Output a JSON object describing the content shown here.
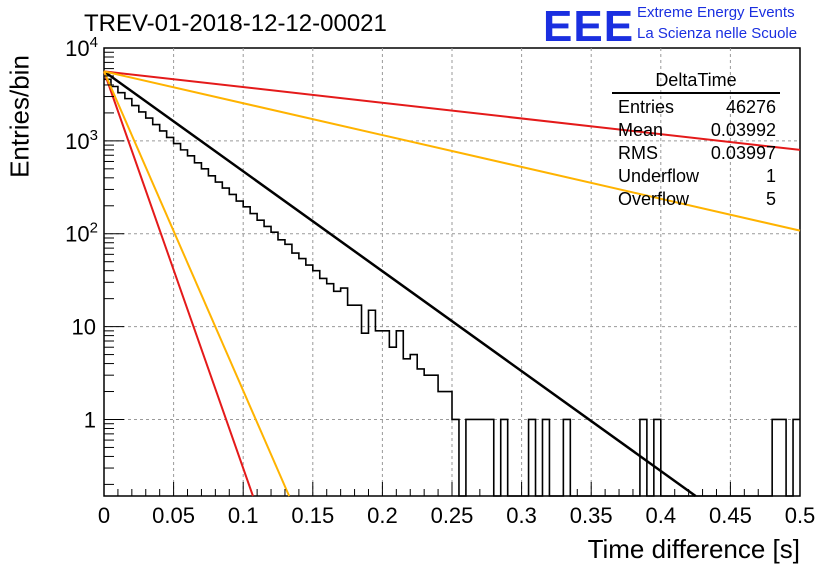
{
  "title": "TREV-01-2018-12-12-00021",
  "logo": {
    "mark": "EEE",
    "line1": "Extreme Energy Events",
    "line2": "La Scienza nelle Scuole",
    "color": "#1a2fe0"
  },
  "stats_box": {
    "name": "DeltaTime",
    "rows": [
      {
        "label": "Entries",
        "value": "46276"
      },
      {
        "label": "Mean",
        "value": "0.03992"
      },
      {
        "label": "RMS",
        "value": "0.03997"
      },
      {
        "label": "Underflow",
        "value": "1"
      },
      {
        "label": "Overflow",
        "value": "5"
      }
    ]
  },
  "chart_data": {
    "type": "histogram",
    "xlabel": "Time difference [s]",
    "ylabel": "Entries/bin",
    "xlim": [
      0,
      0.5
    ],
    "ylim": [
      0.15,
      10000
    ],
    "yscale": "log",
    "grid": true,
    "xticks": [
      "0",
      "0.05",
      "0.1",
      "0.15",
      "0.2",
      "0.25",
      "0.3",
      "0.35",
      "0.4",
      "0.45",
      "0.5"
    ],
    "yticks": [
      {
        "value": 10000,
        "base": "10",
        "exp": "4"
      },
      {
        "value": 1000,
        "base": "10",
        "exp": "3"
      },
      {
        "value": 100,
        "base": "10",
        "exp": "2"
      },
      {
        "value": 10,
        "base": "10",
        "exp": ""
      },
      {
        "value": 1,
        "base": "1",
        "exp": ""
      }
    ],
    "bin_width": 0.005,
    "histogram_counts": [
      4600,
      3850,
      3300,
      2850,
      2400,
      2050,
      1760,
      1500,
      1280,
      1090,
      935,
      800,
      690,
      580,
      500,
      420,
      360,
      310,
      265,
      225,
      195,
      165,
      140,
      120,
      104,
      86,
      77,
      62,
      54,
      46,
      40,
      33,
      29,
      24,
      26,
      17,
      17,
      8.5,
      15,
      9,
      9,
      6,
      9,
      4.5,
      5,
      3.5,
      3,
      3,
      2,
      2,
      1,
      0,
      1,
      1,
      1,
      1,
      0,
      1,
      0,
      0,
      0,
      1,
      0,
      1,
      0,
      0,
      1,
      0,
      0,
      0,
      0,
      0,
      0,
      0,
      0,
      0,
      0,
      1,
      0,
      1,
      0,
      0,
      0,
      0,
      0,
      0,
      0,
      0,
      0,
      0,
      0,
      0,
      0,
      0,
      0,
      0,
      1,
      1,
      0,
      1
    ],
    "fit_lines": [
      {
        "color": "#000000",
        "width": 2.5,
        "points": [
          [
            0,
            5600
          ],
          [
            0.425,
            0.15
          ]
        ]
      },
      {
        "color": "#e41a1a",
        "width": 2,
        "points": [
          [
            0,
            5600
          ],
          [
            0.5,
            800
          ]
        ]
      },
      {
        "color": "#ffb300",
        "width": 2,
        "points": [
          [
            0,
            5600
          ],
          [
            0.5,
            108
          ]
        ]
      },
      {
        "color": "#e41a1a",
        "width": 2,
        "points": [
          [
            0,
            5600
          ],
          [
            0.107,
            0.15
          ]
        ]
      },
      {
        "color": "#ffb300",
        "width": 2,
        "points": [
          [
            0,
            5600
          ],
          [
            0.133,
            0.15
          ]
        ]
      }
    ]
  }
}
